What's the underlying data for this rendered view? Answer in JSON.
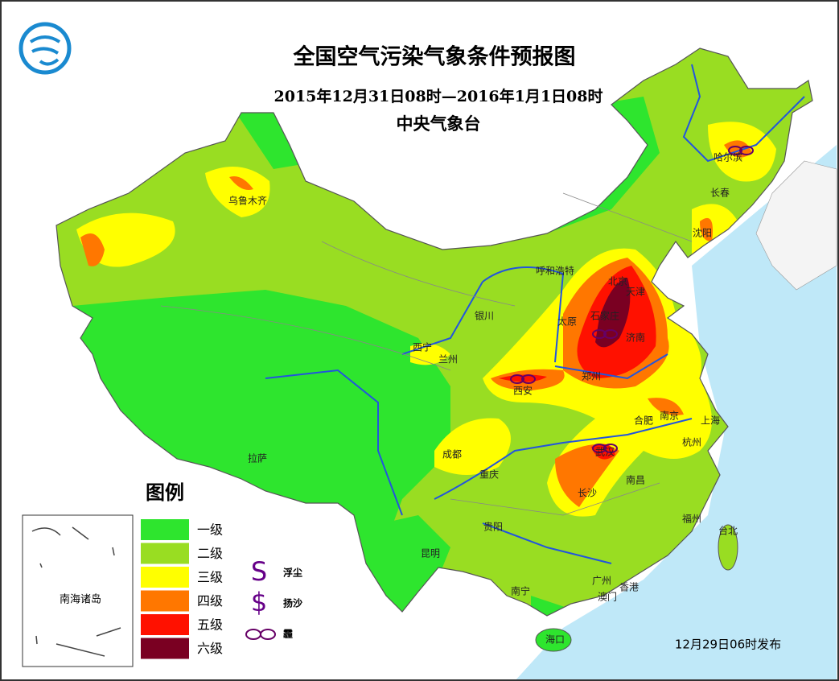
{
  "header": {
    "title": "全国空气污染气象条件预报图",
    "period": "2015年12月31日08时—2016年1月1日08时",
    "issuer": "中央气象台"
  },
  "legend": {
    "title": "图例",
    "levels": [
      {
        "label": "一级",
        "color": "#2ee52e"
      },
      {
        "label": "二级",
        "color": "#99dd22"
      },
      {
        "label": "三级",
        "color": "#ffff00"
      },
      {
        "label": "四级",
        "color": "#ff7700"
      },
      {
        "label": "五级",
        "color": "#ff1100"
      },
      {
        "label": "六级",
        "color": "#7a0022"
      }
    ],
    "symbols": [
      {
        "glyph": "S",
        "label": "浮尘"
      },
      {
        "glyph": "$",
        "label": "扬沙"
      },
      {
        "label": "霾"
      }
    ]
  },
  "cities": [
    "乌鲁木齐",
    "哈尔滨",
    "长春",
    "沈阳",
    "呼和浩特",
    "北京",
    "天津",
    "石家庄",
    "银川",
    "太原",
    "济南",
    "西宁",
    "兰州",
    "郑州",
    "西安",
    "合肥",
    "南京",
    "上海",
    "杭州",
    "成都",
    "武汉",
    "重庆",
    "南昌",
    "长沙",
    "拉萨",
    "贵阳",
    "福州",
    "台北",
    "昆明",
    "南宁",
    "广州",
    "香港",
    "澳门",
    "海口"
  ],
  "inset": {
    "label": "南海诸岛"
  },
  "footer": {
    "issued": "12月29日06时发布"
  }
}
